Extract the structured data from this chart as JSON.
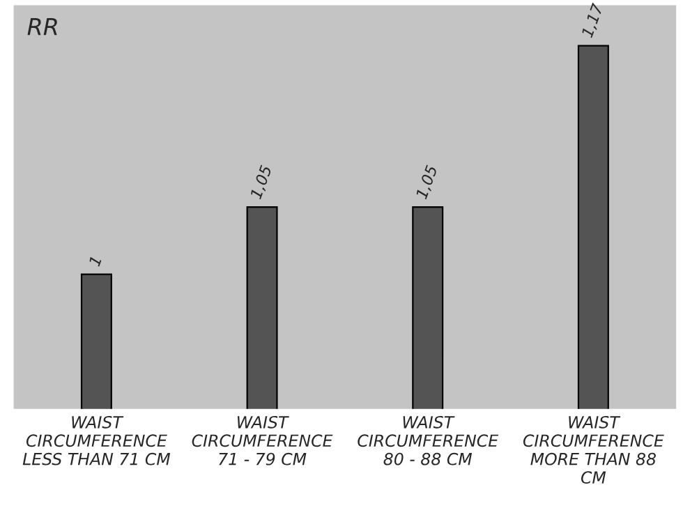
{
  "chart_data": {
    "type": "bar",
    "ylabel": "RR",
    "categories": [
      "WAIST\nCIRCUMFERENCE\nLESS THAN 71 CM",
      "WAIST\nCIRCUMFERENCE\n71 - 79 CM",
      "WAIST\nCIRCUMFERENCE\n80 - 88 CM",
      "WAIST\nCIRCUMFERENCE\nMORE THAN 88\nCM"
    ],
    "values": [
      1,
      1.05,
      1.05,
      1.17
    ],
    "value_labels": [
      "1",
      "1,05",
      "1,05",
      "1,17"
    ],
    "color": "#545454",
    "ylim": [
      0.9,
      1.2
    ],
    "tick_labels": "x"
  }
}
